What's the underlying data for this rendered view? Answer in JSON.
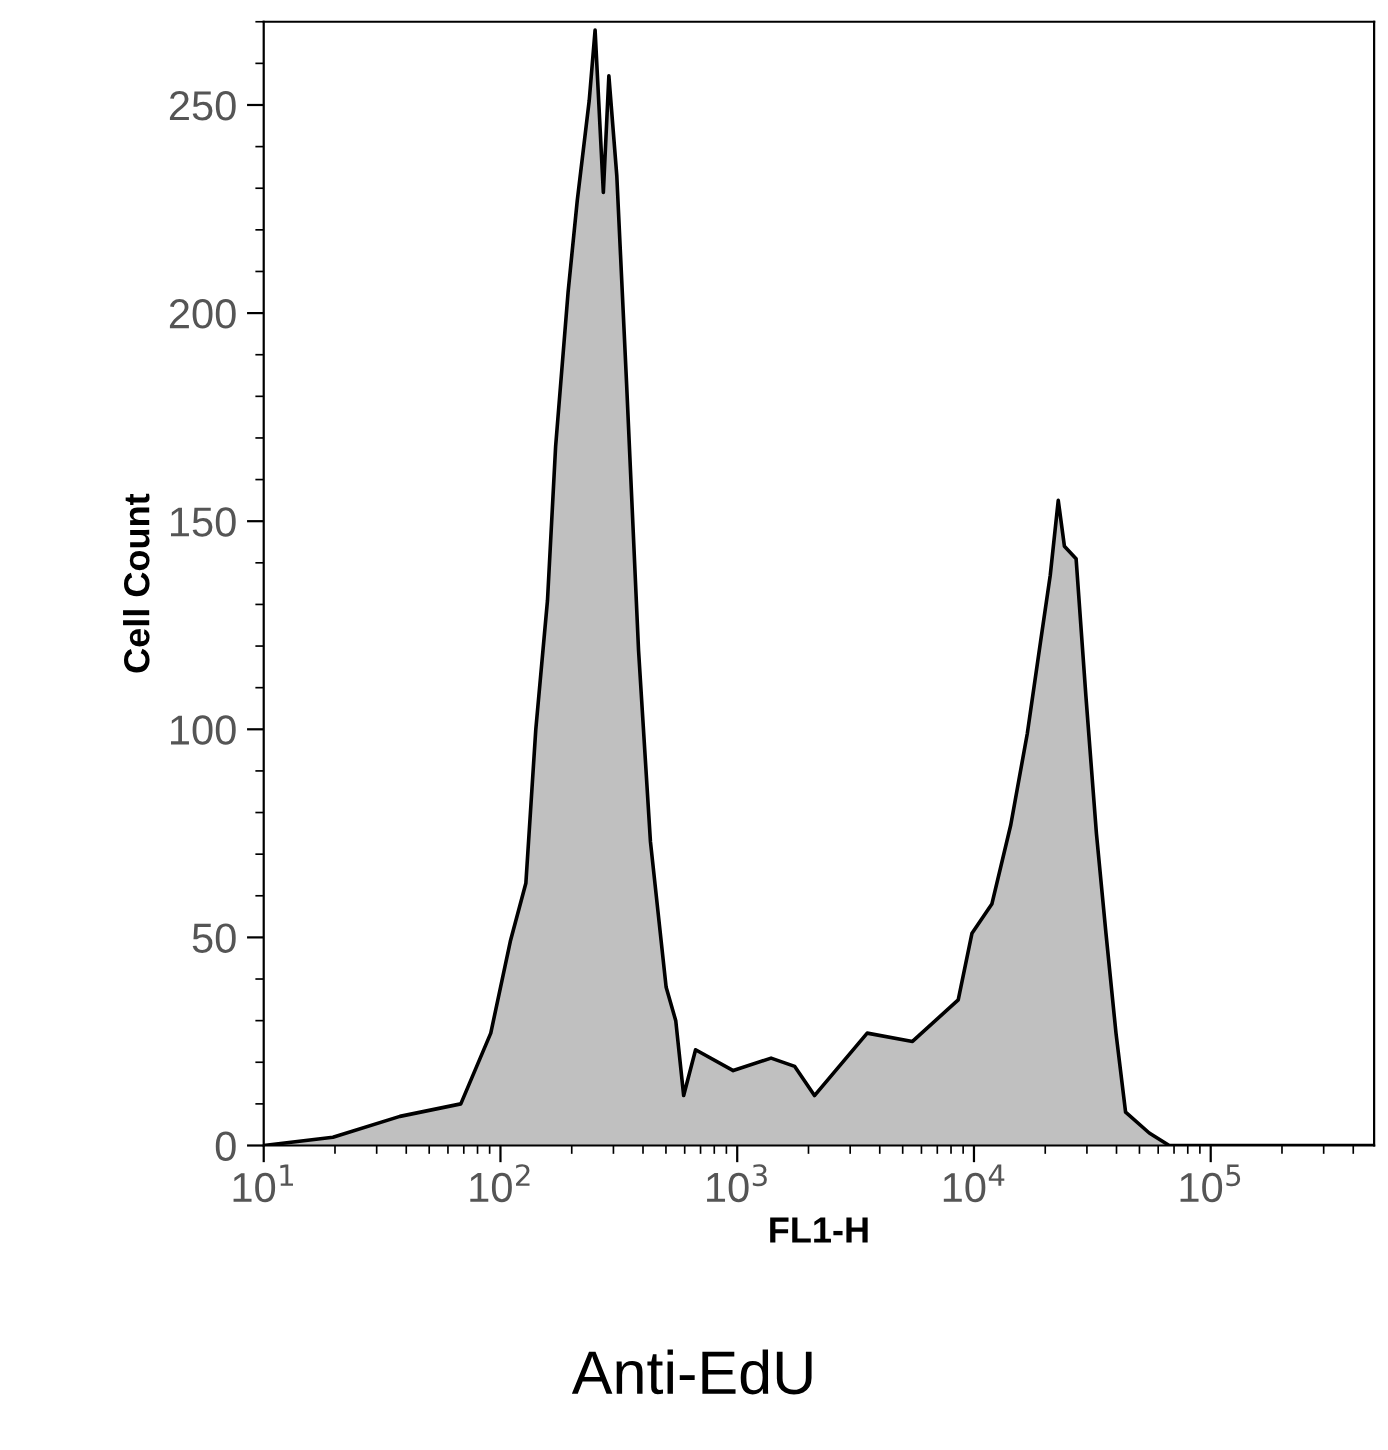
{
  "chart_data": {
    "type": "area",
    "xlabel": "FL1-H",
    "ylabel": "Cell Count",
    "log": "x",
    "grid": false,
    "legend": false,
    "xlim": [
      10,
      490000
    ],
    "ylim": [
      0,
      270
    ],
    "xticks": [
      {
        "value": 10,
        "label": "10$^{1}$"
      },
      {
        "value": 100,
        "label": "10$^{2}$"
      },
      {
        "value": 1000,
        "label": "10$^{3}$"
      },
      {
        "value": 10000,
        "label": "10$^{4}$"
      },
      {
        "value": 100000,
        "label": "10$^{5}$"
      }
    ],
    "yticks": [
      0,
      50,
      100,
      150,
      200,
      250
    ],
    "x": [
      10,
      19.6,
      37.6,
      68,
      91,
      110,
      128,
      141,
      158,
      171,
      193,
      211,
      237,
      251,
      272,
      287,
      310,
      341,
      383,
      430,
      501,
      550,
      594,
      667,
      962,
      1390,
      1750,
      2120,
      3540,
      5500,
      8580,
      9810,
      11900,
      14300,
      16800,
      19100,
      21000,
      22700,
      24100,
      27000,
      29700,
      32900,
      36100,
      39800,
      43700,
      55000,
      66800,
      490000
    ],
    "series": [
      {
        "color": "#c0c0c0",
        "values": [
          0,
          2,
          7,
          10,
          27,
          49,
          63,
          100,
          131,
          168,
          205,
          227,
          251,
          268,
          229,
          257,
          233,
          183,
          119,
          73,
          38,
          30,
          12,
          23,
          18,
          21,
          19,
          12,
          27,
          25,
          35,
          51,
          58,
          77,
          99,
          121,
          137,
          155,
          144,
          141,
          108,
          75,
          51,
          27,
          8,
          3,
          0,
          0
        ]
      }
    ],
    "annotations": [
      "Anti-EdU"
    ]
  }
}
